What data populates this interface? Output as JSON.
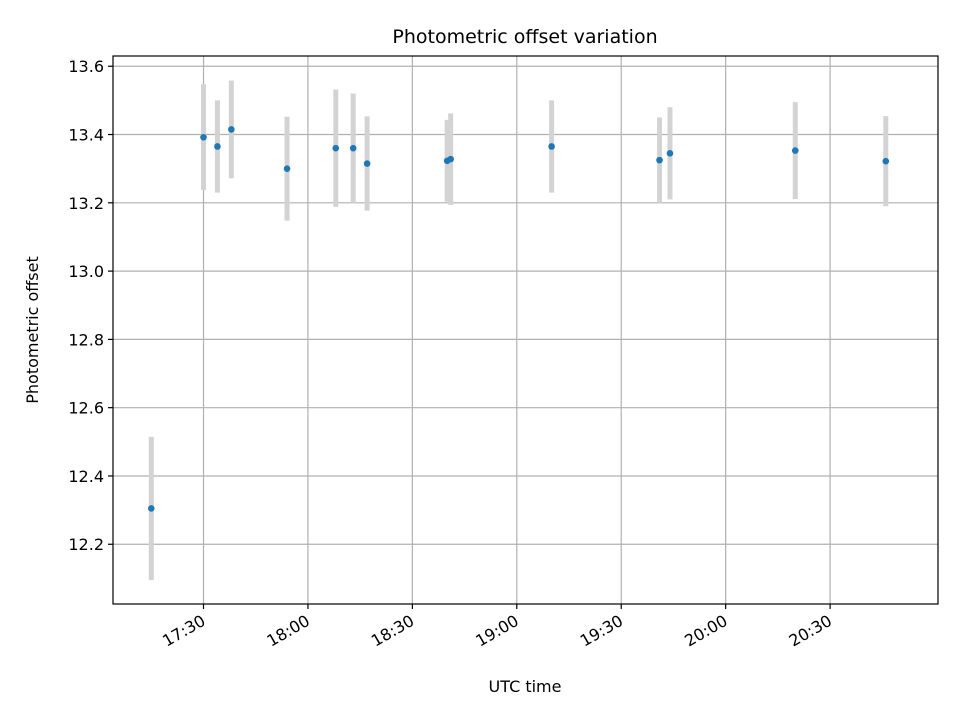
{
  "chart_data": {
    "type": "scatter",
    "title": "Photometric offset variation",
    "xlabel": "UTC time",
    "ylabel": "Photometric offset",
    "xlim": [
      "17:04",
      "21:01"
    ],
    "ylim": [
      12.025,
      13.63
    ],
    "x_ticks": [
      "17:30",
      "18:00",
      "18:30",
      "19:00",
      "19:30",
      "20:00",
      "20:30"
    ],
    "y_ticks": [
      "12.2",
      "12.4",
      "12.6",
      "12.8",
      "13.0",
      "13.2",
      "13.4",
      "13.6"
    ],
    "grid": true,
    "marker_color": "#1f77b4",
    "errorbar_color": "#d3d3d3",
    "points": [
      {
        "x": "17:15",
        "y": 12.305,
        "err": 0.21
      },
      {
        "x": "17:30",
        "y": 13.392,
        "err": 0.155
      },
      {
        "x": "17:34",
        "y": 13.365,
        "err": 0.135
      },
      {
        "x": "17:38",
        "y": 13.415,
        "err": 0.143
      },
      {
        "x": "17:54",
        "y": 13.3,
        "err": 0.152
      },
      {
        "x": "18:08",
        "y": 13.36,
        "err": 0.172
      },
      {
        "x": "18:13",
        "y": 13.36,
        "err": 0.16
      },
      {
        "x": "18:17",
        "y": 13.315,
        "err": 0.138
      },
      {
        "x": "18:40",
        "y": 13.323,
        "err": 0.12
      },
      {
        "x": "18:41",
        "y": 13.328,
        "err": 0.134
      },
      {
        "x": "19:10",
        "y": 13.365,
        "err": 0.135
      },
      {
        "x": "19:41",
        "y": 13.325,
        "err": 0.125
      },
      {
        "x": "19:44",
        "y": 13.345,
        "err": 0.135
      },
      {
        "x": "20:20",
        "y": 13.353,
        "err": 0.142
      },
      {
        "x": "20:46",
        "y": 13.322,
        "err": 0.132
      }
    ]
  }
}
